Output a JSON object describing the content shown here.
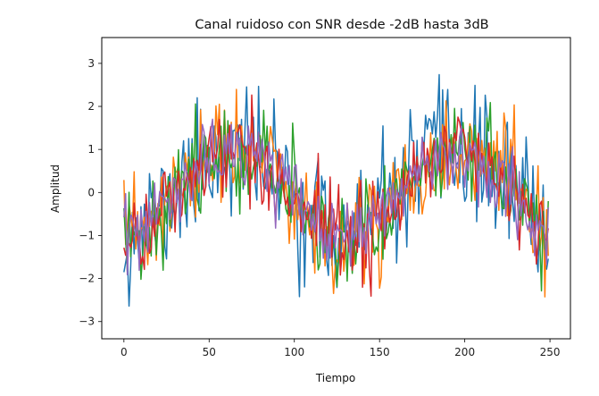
{
  "chart_data": {
    "type": "line",
    "title": "Canal ruidoso con SNR desde -2dB hasta 3dB",
    "xlabel": "Tiempo",
    "ylabel": "Amplitud",
    "xlim": [
      -13,
      262
    ],
    "ylim": [
      -3.4,
      3.6
    ],
    "xticks": [
      0,
      50,
      100,
      150,
      200,
      250
    ],
    "yticks": [
      -3,
      -2,
      -1,
      0,
      1,
      2,
      3
    ],
    "grid": false,
    "legend": "none",
    "n_points": 250,
    "underlying_signal": "sinusoid, amplitude ~1, period ~130 samples, peaks near x=65 and x=195",
    "series": [
      {
        "color": "#1f77b4",
        "noise_std": 0.75,
        "seed": 11
      },
      {
        "color": "#ff7f0e",
        "noise_std": 0.65,
        "seed": 23
      },
      {
        "color": "#2ca02c",
        "noise_std": 0.55,
        "seed": 37
      },
      {
        "color": "#d62728",
        "noise_std": 0.5,
        "seed": 41
      },
      {
        "color": "#9467bd",
        "noise_std": 0.42,
        "seed": 53
      }
    ]
  }
}
